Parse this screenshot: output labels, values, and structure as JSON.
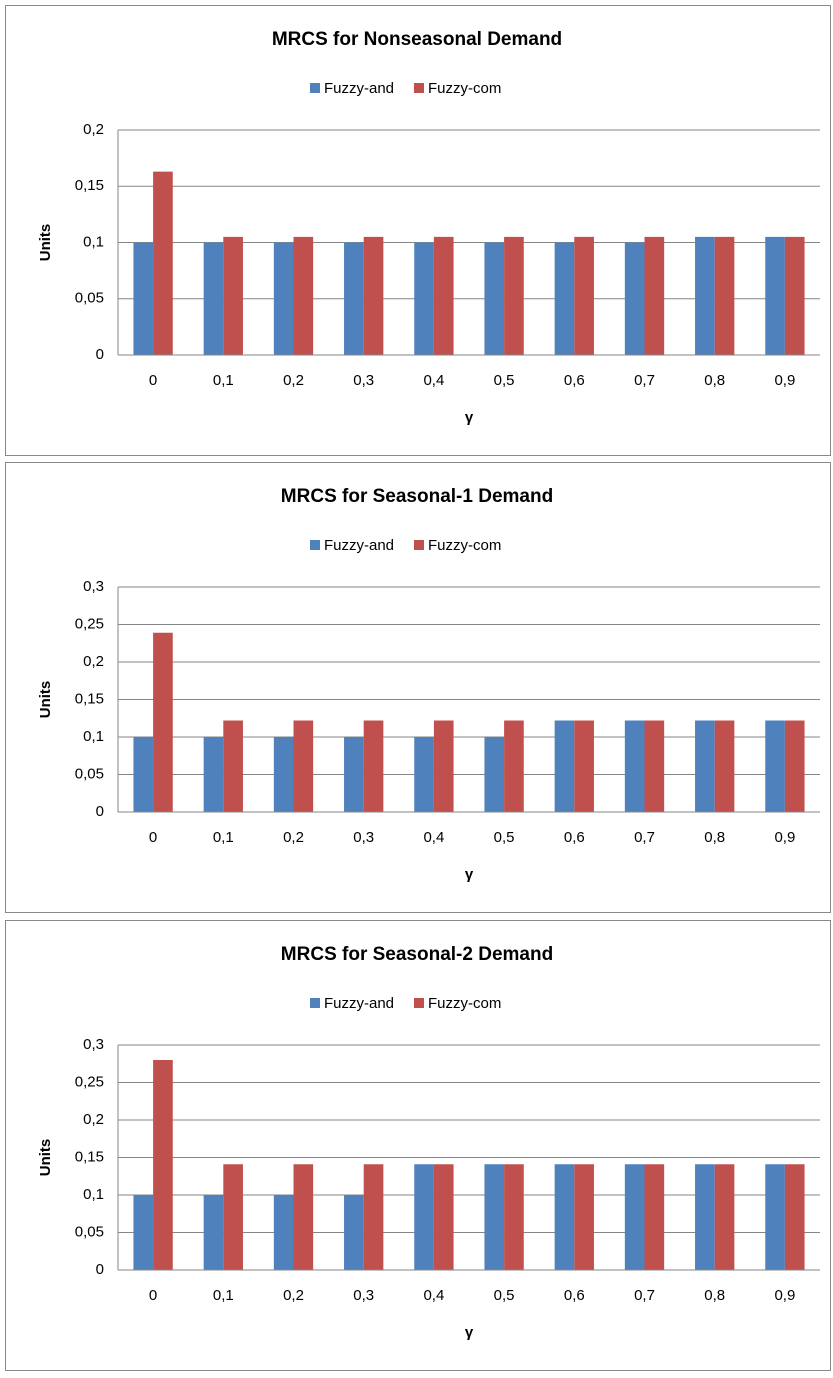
{
  "chart_data": [
    {
      "type": "bar",
      "title": "MRCS for Nonseasonal Demand",
      "y_label": "Units",
      "x_label": "γ",
      "categories": [
        "0",
        "0,1",
        "0,2",
        "0,3",
        "0,4",
        "0,5",
        "0,6",
        "0,7",
        "0,8",
        "0,9"
      ],
      "series": [
        {
          "name": "Fuzzy-and",
          "color": "#4f81bd",
          "values": [
            0.1,
            0.1,
            0.1,
            0.1,
            0.1,
            0.1,
            0.1,
            0.1,
            0.105,
            0.105
          ]
        },
        {
          "name": "Fuzzy-com",
          "color": "#c0504d",
          "values": [
            0.163,
            0.105,
            0.105,
            0.105,
            0.105,
            0.105,
            0.105,
            0.105,
            0.105,
            0.105
          ]
        }
      ],
      "ylim": [
        0,
        0.2
      ],
      "yticks": [
        0,
        {
          "value": 0.05,
          "label": "0,05"
        },
        {
          "value": 0.1,
          "label": "0,1"
        },
        {
          "value": 0.15,
          "label": "0,15"
        },
        {
          "value": 0.2,
          "label": "0,2"
        }
      ],
      "grid": true,
      "legend": "top"
    },
    {
      "type": "bar",
      "title": "MRCS for Seasonal-1 Demand",
      "y_label": "Units",
      "x_label": "γ",
      "categories": [
        "0",
        "0,1",
        "0,2",
        "0,3",
        "0,4",
        "0,5",
        "0,6",
        "0,7",
        "0,8",
        "0,9"
      ],
      "series": [
        {
          "name": "Fuzzy-and",
          "color": "#4f81bd",
          "values": [
            0.1,
            0.1,
            0.1,
            0.1,
            0.1,
            0.1,
            0.122,
            0.122,
            0.122,
            0.122
          ]
        },
        {
          "name": "Fuzzy-com",
          "color": "#c0504d",
          "values": [
            0.239,
            0.122,
            0.122,
            0.122,
            0.122,
            0.122,
            0.122,
            0.122,
            0.122,
            0.122
          ]
        }
      ],
      "ylim": [
        0,
        0.3
      ],
      "yticks": [
        0,
        {
          "value": 0.05,
          "label": "0,05"
        },
        {
          "value": 0.1,
          "label": "0,1"
        },
        {
          "value": 0.15,
          "label": "0,15"
        },
        {
          "value": 0.2,
          "label": "0,2"
        },
        {
          "value": 0.25,
          "label": "0,25"
        },
        {
          "value": 0.3,
          "label": "0,3"
        }
      ],
      "grid": true,
      "legend": "top"
    },
    {
      "type": "bar",
      "title": "MRCS for Seasonal-2 Demand",
      "y_label": "Units",
      "x_label": "γ",
      "categories": [
        "0",
        "0,1",
        "0,2",
        "0,3",
        "0,4",
        "0,5",
        "0,6",
        "0,7",
        "0,8",
        "0,9"
      ],
      "series": [
        {
          "name": "Fuzzy-and",
          "color": "#4f81bd",
          "values": [
            0.1,
            0.1,
            0.1,
            0.1,
            0.141,
            0.141,
            0.141,
            0.141,
            0.141,
            0.141
          ]
        },
        {
          "name": "Fuzzy-com",
          "color": "#c0504d",
          "values": [
            0.28,
            0.141,
            0.141,
            0.141,
            0.141,
            0.141,
            0.141,
            0.141,
            0.141,
            0.141
          ]
        }
      ],
      "ylim": [
        0,
        0.3
      ],
      "yticks": [
        0,
        {
          "value": 0.05,
          "label": "0,05"
        },
        {
          "value": 0.1,
          "label": "0,1"
        },
        {
          "value": 0.15,
          "label": "0,15"
        },
        {
          "value": 0.2,
          "label": "0,2"
        },
        {
          "value": 0.25,
          "label": "0,25"
        },
        {
          "value": 0.3,
          "label": "0,3"
        }
      ],
      "grid": true,
      "legend": "top"
    }
  ]
}
